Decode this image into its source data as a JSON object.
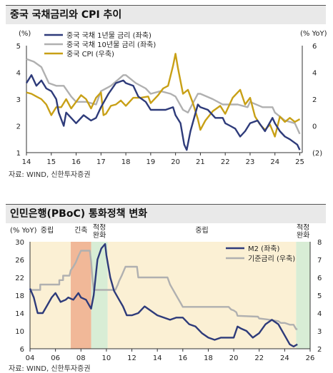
{
  "chart1": {
    "title": "중국 국채금리와 CPI 추이",
    "source": "자료: WIND, 신한투자증권",
    "colors": {
      "cgb1y": "#2e3b7a",
      "cgb10y": "#b0b0b0",
      "cpi": "#c8a016"
    },
    "chart_data": {
      "type": "line",
      "y_unit_left": "(%)",
      "y_unit_right": "(% YoY)",
      "ylim_left": [
        1,
        5
      ],
      "ylim_right": [
        -2,
        6
      ],
      "yticks_left": [
        "1",
        "2",
        "3",
        "4",
        "5"
      ],
      "yticks_right": [
        "(2)",
        "0",
        "2",
        "4",
        "6"
      ],
      "x_ticks": [
        "14",
        "15",
        "16",
        "17",
        "18",
        "19",
        "20",
        "21",
        "22",
        "23",
        "24",
        "25"
      ],
      "legend_position": "top-left",
      "series": [
        {
          "name": "중국 국채 1년물 금리 (좌축)",
          "axis": "left",
          "key": "cgb1y",
          "x": [
            2014.0,
            2014.2,
            2014.4,
            2014.6,
            2014.8,
            2015.0,
            2015.2,
            2015.3,
            2015.5,
            2015.6,
            2015.8,
            2016.0,
            2016.3,
            2016.6,
            2016.8,
            2017.0,
            2017.3,
            2017.6,
            2017.9,
            2018.0,
            2018.3,
            2018.5,
            2018.8,
            2019.0,
            2019.3,
            2019.6,
            2019.9,
            2020.0,
            2020.2,
            2020.35,
            2020.45,
            2020.6,
            2020.9,
            2021.0,
            2021.3,
            2021.6,
            2021.9,
            2022.0,
            2022.2,
            2022.4,
            2022.6,
            2022.8,
            2023.0,
            2023.3,
            2023.6,
            2023.9,
            2024.0,
            2024.2,
            2024.4,
            2024.6,
            2024.9,
            2025.0
          ],
          "values": [
            3.6,
            3.9,
            3.5,
            3.7,
            3.4,
            3.3,
            3.0,
            2.5,
            2.0,
            2.5,
            2.3,
            2.1,
            2.4,
            2.2,
            2.3,
            2.7,
            3.2,
            3.6,
            3.7,
            3.6,
            3.5,
            3.1,
            2.9,
            2.6,
            2.6,
            2.6,
            2.7,
            2.4,
            2.1,
            1.3,
            1.1,
            1.8,
            2.8,
            2.7,
            2.6,
            2.3,
            2.3,
            2.1,
            2.0,
            1.9,
            1.6,
            1.8,
            2.1,
            2.2,
            1.8,
            2.3,
            2.1,
            1.8,
            1.6,
            1.5,
            1.3,
            1.1
          ]
        },
        {
          "name": "중국 국채 10년물 금리 (좌축)",
          "axis": "left",
          "key": "cgb10y",
          "x": [
            2014.0,
            2014.3,
            2014.6,
            2014.9,
            2015.2,
            2015.5,
            2015.8,
            2016.0,
            2016.4,
            2016.8,
            2017.0,
            2017.4,
            2017.9,
            2018.0,
            2018.4,
            2018.8,
            2019.0,
            2019.4,
            2019.8,
            2020.0,
            2020.3,
            2020.5,
            2020.9,
            2021.0,
            2021.5,
            2021.9,
            2022.0,
            2022.5,
            2022.9,
            2023.0,
            2023.5,
            2023.9,
            2024.0,
            2024.4,
            2024.8,
            2025.0
          ],
          "values": [
            4.5,
            4.4,
            4.2,
            3.6,
            3.5,
            3.5,
            3.1,
            2.9,
            2.9,
            2.8,
            3.3,
            3.5,
            3.9,
            3.9,
            3.6,
            3.4,
            3.2,
            3.3,
            3.2,
            3.1,
            2.6,
            2.5,
            3.2,
            3.2,
            3.0,
            2.8,
            2.8,
            2.8,
            2.7,
            2.9,
            2.7,
            2.7,
            2.5,
            2.2,
            2.1,
            1.7
          ]
        },
        {
          "name": "중국 CPI (우축)",
          "axis": "right",
          "key": "cpi",
          "x": [
            2014.0,
            2014.2,
            2014.4,
            2014.6,
            2014.8,
            2015.0,
            2015.2,
            2015.4,
            2015.6,
            2015.8,
            2016.0,
            2016.2,
            2016.4,
            2016.6,
            2016.8,
            2017.0,
            2017.1,
            2017.2,
            2017.4,
            2017.6,
            2017.8,
            2018.0,
            2018.3,
            2018.6,
            2018.9,
            2019.0,
            2019.3,
            2019.5,
            2019.7,
            2019.9,
            2020.0,
            2020.1,
            2020.3,
            2020.5,
            2020.7,
            2020.9,
            2021.0,
            2021.2,
            2021.5,
            2021.8,
            2022.0,
            2022.3,
            2022.6,
            2022.8,
            2023.0,
            2023.2,
            2023.4,
            2023.6,
            2023.8,
            2024.0,
            2024.2,
            2024.4,
            2024.6,
            2024.8,
            2025.0
          ],
          "values": [
            2.5,
            2.4,
            2.2,
            2.0,
            1.6,
            0.8,
            1.4,
            1.4,
            2.0,
            1.3,
            1.8,
            2.3,
            2.0,
            1.3,
            2.1,
            2.5,
            0.8,
            0.9,
            1.5,
            1.6,
            1.9,
            1.5,
            2.1,
            2.1,
            2.2,
            1.7,
            2.3,
            2.8,
            3.0,
            4.5,
            5.4,
            4.3,
            2.4,
            2.7,
            1.7,
            0.5,
            -0.3,
            0.4,
            1.1,
            1.5,
            0.9,
            2.1,
            2.7,
            1.6,
            2.1,
            0.7,
            0.1,
            -0.3,
            0.1,
            -0.8,
            0.7,
            0.3,
            0.6,
            0.3,
            0.5
          ]
        }
      ]
    }
  },
  "chart2": {
    "title": "인민은행(PBoC) 통화정책 변화",
    "source": "자료: WIND, 신한투자증권",
    "colors": {
      "m2": "#2e3b7a",
      "rate": "#b0b0b0",
      "easing_bg": "#fbf0d4",
      "tightening_bg": "#f1b898",
      "shift_bg": "#d8edd5"
    },
    "chart_data": {
      "type": "line",
      "y_unit_left": "(% YoY)",
      "ylim_left": [
        6,
        30
      ],
      "ylim_right": [
        2,
        8
      ],
      "yticks_left": [
        "6",
        "10",
        "14",
        "18",
        "22",
        "26",
        "30"
      ],
      "yticks_right": [
        "2",
        "3",
        "4",
        "5",
        "6",
        "7",
        "8"
      ],
      "x_ticks": [
        "04",
        "06",
        "08",
        "10",
        "12",
        "14",
        "16",
        "18",
        "20",
        "22",
        "24",
        "26"
      ],
      "xlim": [
        2004,
        2026
      ],
      "legend_position": "top-right",
      "regimes": [
        {
          "label": "중립",
          "start": 2004.0,
          "end": 2007.2,
          "kind": "easing"
        },
        {
          "label": "긴축",
          "start": 2007.2,
          "end": 2008.8,
          "kind": "tightening"
        },
        {
          "label": "적정\n완화",
          "start": 2008.8,
          "end": 2010.1,
          "kind": "shift"
        },
        {
          "label": "중립",
          "start": 2010.1,
          "end": 2024.9,
          "kind": "easing"
        },
        {
          "label": "적정\n완화",
          "start": 2024.9,
          "end": 2026.0,
          "kind": "shift"
        }
      ],
      "series": [
        {
          "name": "M2 (좌축)",
          "axis": "left",
          "key": "m2",
          "x": [
            2004.0,
            2004.3,
            2004.6,
            2005.0,
            2005.3,
            2005.7,
            2006.0,
            2006.4,
            2006.8,
            2007.0,
            2007.4,
            2007.8,
            2008.0,
            2008.4,
            2008.8,
            2009.0,
            2009.3,
            2009.6,
            2009.9,
            2010.0,
            2010.3,
            2010.6,
            2011.0,
            2011.3,
            2011.6,
            2012.0,
            2012.5,
            2013.0,
            2013.5,
            2014.0,
            2014.5,
            2015.0,
            2015.5,
            2016.0,
            2016.5,
            2017.0,
            2017.5,
            2018.0,
            2018.5,
            2019.0,
            2019.5,
            2020.0,
            2020.3,
            2020.6,
            2021.0,
            2021.5,
            2022.0,
            2022.5,
            2023.0,
            2023.5,
            2024.0,
            2024.4,
            2024.7,
            2025.0
          ],
          "values": [
            19.5,
            17.5,
            14.0,
            14.0,
            15.5,
            17.5,
            18.5,
            16.5,
            17.0,
            17.5,
            17.0,
            18.5,
            17.5,
            17.0,
            15.0,
            18.0,
            26.0,
            28.5,
            29.5,
            27.0,
            22.0,
            19.0,
            17.0,
            15.5,
            13.5,
            13.5,
            14.0,
            15.5,
            14.5,
            13.5,
            13.0,
            12.5,
            13.0,
            13.0,
            11.5,
            11.0,
            9.5,
            8.5,
            8.0,
            8.5,
            8.5,
            8.5,
            11.0,
            10.5,
            10.0,
            8.5,
            9.5,
            11.5,
            12.5,
            11.5,
            9.0,
            7.0,
            6.5,
            7.0
          ]
        },
        {
          "name": "기준금리 (우축)",
          "axis": "right",
          "key": "rate",
          "x": [
            2004.0,
            2004.8,
            2004.8,
            2006.3,
            2006.3,
            2006.6,
            2006.6,
            2007.1,
            2007.2,
            2007.4,
            2007.6,
            2007.8,
            2008.0,
            2008.7,
            2008.8,
            2008.9,
            2009.0,
            2010.7,
            2010.9,
            2011.0,
            2011.2,
            2011.5,
            2012.4,
            2012.5,
            2014.8,
            2015.0,
            2015.2,
            2015.4,
            2015.6,
            2015.8,
            2016.0,
            2019.6,
            2019.8,
            2020.0,
            2020.2,
            2020.3,
            2021.9,
            2022.0,
            2022.6,
            2023.5,
            2023.7,
            2024.0,
            2024.4,
            2024.7,
            2024.9,
            2025.0
          ],
          "values": [
            5.3,
            5.3,
            5.6,
            5.6,
            5.85,
            5.85,
            6.1,
            6.1,
            6.4,
            6.6,
            6.85,
            7.2,
            7.5,
            7.5,
            6.9,
            6.0,
            5.3,
            5.3,
            5.6,
            5.8,
            6.1,
            6.6,
            6.6,
            6.0,
            6.0,
            5.6,
            5.35,
            5.1,
            4.85,
            4.6,
            4.35,
            4.35,
            4.2,
            4.15,
            4.05,
            3.85,
            3.8,
            3.7,
            3.65,
            3.55,
            3.45,
            3.45,
            3.35,
            3.35,
            3.1,
            3.1
          ]
        }
      ]
    }
  }
}
